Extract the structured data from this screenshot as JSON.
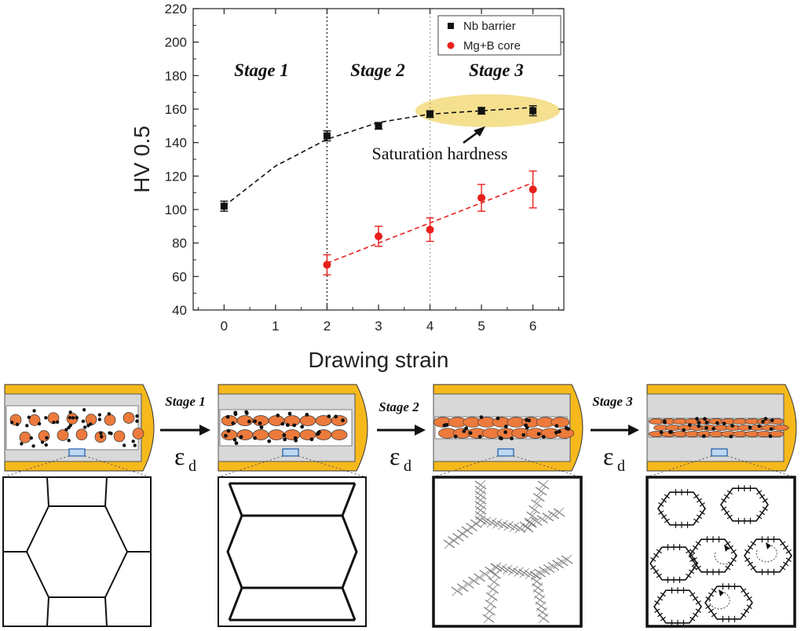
{
  "chart_data": {
    "type": "scatter",
    "xlabel": "Drawing strain",
    "ylabel": "HV 0.5",
    "xlim": [
      -0.6,
      6.6
    ],
    "ylim": [
      40,
      220
    ],
    "x_ticks": [
      "0",
      "1",
      "2",
      "3",
      "4",
      "5",
      "6"
    ],
    "y_ticks": [
      "40",
      "60",
      "80",
      "100",
      "120",
      "140",
      "160",
      "180",
      "200",
      "220"
    ],
    "legend_position": "top-right",
    "series": [
      {
        "name": "Nb barrier",
        "marker": "square",
        "color": "#111111",
        "x": [
          0,
          2,
          3,
          4,
          5,
          6
        ],
        "y": [
          102,
          144,
          150,
          157,
          159,
          159
        ],
        "err": [
          3,
          3,
          2,
          2,
          2,
          3
        ],
        "fit": {
          "x": [
            0,
            1,
            2,
            3,
            4,
            5,
            6
          ],
          "y": [
            102,
            126,
            142,
            152,
            157,
            159,
            161
          ]
        }
      },
      {
        "name": "Mg+B core",
        "marker": "circle",
        "color": "#e8201c",
        "x": [
          2,
          3,
          4,
          5,
          6
        ],
        "y": [
          67,
          84,
          88,
          107,
          112
        ],
        "err": [
          6,
          6,
          7,
          8,
          11
        ],
        "fit": {
          "x": [
            2,
            6
          ],
          "y": [
            68,
            116
          ]
        }
      }
    ],
    "stages": [
      "Stage 1",
      "Stage 2",
      "Stage 3"
    ],
    "stage_dividers_x": [
      2,
      4
    ],
    "annotation": "Saturation hardness",
    "saturation_color": "#f2d56b"
  },
  "schematic": {
    "stage_arrows": [
      "Stage 1",
      "Stage 2",
      "Stage 3"
    ],
    "arrow_label": "ε",
    "arrow_subscript": "d",
    "colors": {
      "sheath": "#f6b91c",
      "barrier": "#d8d8d8",
      "particle": "#ec7a3c",
      "dark": "#111111"
    }
  }
}
